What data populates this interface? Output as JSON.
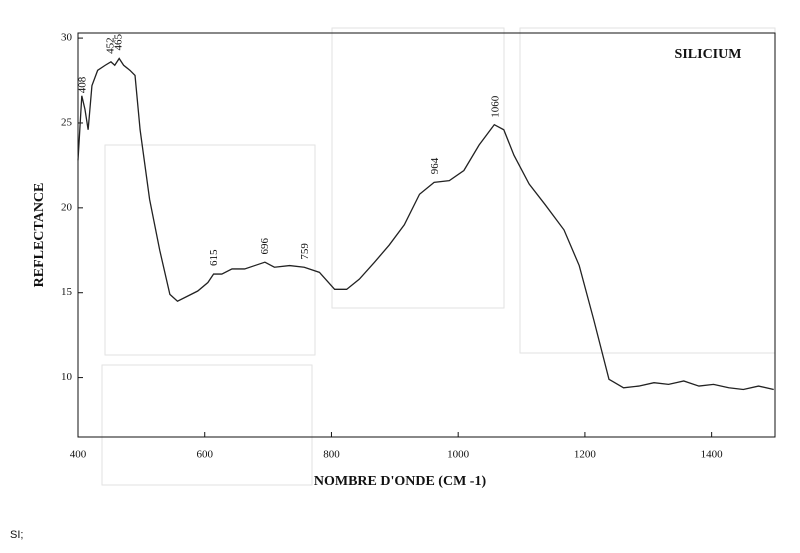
{
  "chart_data": {
    "type": "line",
    "title": "SILICIUM",
    "x_label": "NOMBRE D'ONDE (CM -1)",
    "y_label": "REFLECTANCE",
    "footer": "SI;",
    "x": [
      400,
      406,
      411,
      416,
      422,
      431,
      443,
      452,
      458,
      465,
      472,
      482,
      490,
      498,
      513,
      529,
      545,
      557,
      573,
      589,
      605,
      614,
      627,
      643,
      663,
      679,
      695,
      710,
      734,
      757,
      781,
      805,
      824,
      844,
      868,
      891,
      915,
      939,
      962,
      986,
      1009,
      1033,
      1057,
      1072,
      1088,
      1112,
      1137,
      1167,
      1191,
      1214,
      1238,
      1261,
      1285,
      1309,
      1332,
      1356,
      1380,
      1403,
      1427,
      1450,
      1474,
      1498
    ],
    "series": [
      {
        "color": "#222222",
        "values": [
          22.8,
          26.6,
          25.8,
          24.6,
          27.2,
          28.1,
          28.4,
          28.6,
          28.4,
          28.8,
          28.4,
          28.1,
          27.8,
          24.6,
          20.5,
          17.5,
          14.9,
          14.5,
          14.8,
          15.1,
          15.6,
          16.1,
          16.1,
          16.4,
          16.4,
          16.6,
          16.8,
          16.5,
          16.6,
          16.5,
          16.2,
          15.2,
          15.2,
          15.8,
          16.8,
          17.8,
          19.0,
          20.8,
          21.5,
          21.6,
          22.2,
          23.7,
          24.9,
          24.6,
          23.1,
          21.4,
          20.2,
          18.7,
          16.6,
          13.4,
          9.9,
          9.4,
          9.5,
          9.7,
          9.6,
          9.8,
          9.5,
          9.6,
          9.4,
          9.3,
          9.5,
          9.3
        ]
      }
    ],
    "peak_labels": [
      408,
      452,
      465,
      615,
      696,
      759,
      964,
      1060
    ],
    "xlim": [
      400,
      1500
    ],
    "ylim": [
      6.5,
      30.3
    ],
    "xticks": [
      400,
      600,
      800,
      1000,
      1200,
      1400
    ],
    "yticks": [
      10,
      15,
      20,
      25,
      30
    ]
  }
}
